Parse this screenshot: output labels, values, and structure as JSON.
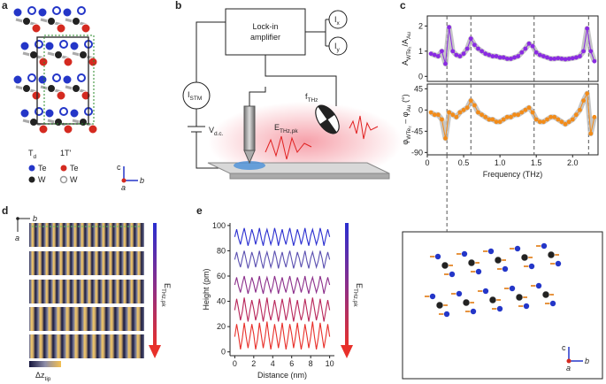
{
  "panel_labels": [
    "a",
    "b",
    "c",
    "d",
    "e"
  ],
  "panel_a": {
    "phases": [
      [
        "T",
        "d"
      ],
      [
        "1T'"
      ]
    ],
    "td_atoms": [
      "Te",
      "W"
    ],
    "t1_atoms": [
      "Te",
      "W"
    ],
    "axes": [
      "c",
      "a",
      "b"
    ]
  },
  "panel_b": {
    "lockin": [
      "Lock-in",
      "amplifier"
    ],
    "ix": [
      "I",
      "x"
    ],
    "iy": [
      "I",
      "y"
    ],
    "istm": [
      "I",
      "STM"
    ],
    "vdc": [
      "V",
      "d.c."
    ],
    "fthz": [
      "f",
      "THz"
    ],
    "ethz": [
      "E",
      "THz,pk"
    ]
  },
  "panel_c_inset": {
    "axes": [
      "c",
      "a",
      "b"
    ]
  },
  "panel_d": {
    "axes": [
      "b",
      "a"
    ],
    "arrow_label": [
      "E",
      "THz,pk"
    ],
    "colorbar_label": [
      "Δz",
      "tip"
    ]
  },
  "panel_e": {
    "arrow_label": [
      "E",
      "THz,pk"
    ]
  },
  "chart_data": [
    {
      "type": "line",
      "ylabel": [
        "A",
        "WTe₂",
        "/A",
        "Au"
      ],
      "frame": true,
      "markers": true,
      "band_color": "#b8b8b8",
      "x": [
        0.05,
        0.1,
        0.15,
        0.2,
        0.25,
        0.3,
        0.35,
        0.4,
        0.45,
        0.5,
        0.55,
        0.6,
        0.65,
        0.7,
        0.75,
        0.8,
        0.85,
        0.9,
        0.95,
        1.0,
        1.05,
        1.1,
        1.15,
        1.2,
        1.25,
        1.3,
        1.35,
        1.4,
        1.45,
        1.5,
        1.55,
        1.6,
        1.65,
        1.7,
        1.75,
        1.8,
        1.85,
        1.9,
        1.95,
        2.0,
        2.05,
        2.1,
        2.15,
        2.2,
        2.25,
        2.3
      ],
      "series": [
        {
          "color": "#8a2be2",
          "values": [
            0.9,
            0.85,
            0.8,
            1.0,
            0.5,
            1.95,
            1.0,
            0.85,
            0.8,
            0.9,
            1.1,
            1.5,
            1.25,
            1.1,
            1.0,
            0.9,
            0.85,
            0.8,
            0.8,
            0.75,
            0.75,
            0.7,
            0.7,
            0.75,
            0.8,
            0.95,
            1.1,
            1.3,
            1.2,
            0.95,
            0.85,
            0.8,
            0.75,
            0.7,
            0.7,
            0.72,
            0.7,
            0.68,
            0.7,
            0.72,
            0.75,
            0.8,
            1.0,
            1.9,
            1.0,
            0.6
          ]
        }
      ],
      "vlines": [
        0.27,
        0.6,
        1.47,
        2.22
      ],
      "xlim": [
        0,
        2.35
      ],
      "ylim": [
        -0.2,
        2.4
      ],
      "yticks": [
        0,
        1,
        2
      ]
    },
    {
      "type": "line",
      "ylabel": [
        "φ",
        "WTe₂",
        " – φ",
        "Au",
        " (°)"
      ],
      "xlabel": "Frequency (THz)",
      "frame": true,
      "markers": true,
      "band_color": "#b8b8b8",
      "x": [
        0.05,
        0.1,
        0.15,
        0.2,
        0.25,
        0.3,
        0.35,
        0.4,
        0.45,
        0.5,
        0.55,
        0.6,
        0.65,
        0.7,
        0.75,
        0.8,
        0.85,
        0.9,
        0.95,
        1.0,
        1.05,
        1.1,
        1.15,
        1.2,
        1.25,
        1.3,
        1.35,
        1.4,
        1.45,
        1.5,
        1.55,
        1.6,
        1.65,
        1.7,
        1.75,
        1.8,
        1.85,
        1.9,
        1.95,
        2.0,
        2.05,
        2.1,
        2.15,
        2.2,
        2.25,
        2.3
      ],
      "series": [
        {
          "color": "#f28c1a",
          "values": [
            -5,
            -10,
            -10,
            -20,
            -60,
            -5,
            -10,
            -15,
            -5,
            0,
            5,
            20,
            10,
            -5,
            -10,
            -15,
            -20,
            -20,
            -25,
            -25,
            -20,
            -15,
            -15,
            -10,
            -10,
            -5,
            0,
            5,
            -5,
            -20,
            -25,
            -25,
            -20,
            -15,
            -15,
            -20,
            -25,
            -30,
            -25,
            -20,
            -10,
            0,
            20,
            35,
            -50,
            -15
          ]
        }
      ],
      "vlines": [
        0.27,
        0.6,
        1.47,
        2.22
      ],
      "xlim": [
        0,
        2.35
      ],
      "ylim": [
        -95,
        55
      ],
      "yticks": [
        -90,
        -45,
        0,
        45
      ],
      "xticks": [
        0,
        0.5,
        {
          "value": 1,
          "label": "1.0"
        },
        1.5,
        {
          "value": 2,
          "label": "2.0"
        }
      ]
    },
    {
      "type": "line",
      "xlabel": "Distance (nm)",
      "ylabel": [
        "Height (pm)"
      ],
      "frame": false,
      "markers": false,
      "x": [
        0,
        0.2,
        0.4,
        0.6,
        0.8,
        1,
        1.2,
        1.4,
        1.6,
        1.8,
        2,
        2.2,
        2.4,
        2.6,
        2.8,
        3,
        3.2,
        3.4,
        3.6,
        3.8,
        4,
        4.2,
        4.4,
        4.6,
        4.8,
        5,
        5.2,
        5.4,
        5.6,
        5.8,
        6,
        6.2,
        6.4,
        6.6,
        6.8,
        7,
        7.2,
        7.4,
        7.6,
        7.8,
        8,
        8.2,
        8.4,
        8.6,
        8.8,
        9,
        9.2,
        9.4,
        9.6,
        9.8,
        10
      ],
      "series": [
        {
          "color": "#e8302a",
          "values": [
            12,
            22,
            13,
            2,
            11,
            23,
            12,
            3,
            12,
            22,
            14,
            2,
            10,
            23,
            13,
            3,
            12,
            24,
            12,
            2,
            11,
            22,
            13,
            3,
            12,
            23,
            12,
            2,
            11,
            22,
            14,
            3,
            12,
            23,
            12,
            2,
            10,
            22,
            13,
            3,
            12,
            24,
            12,
            2,
            11,
            23,
            13,
            3,
            12,
            22,
            12
          ]
        },
        {
          "color": "#b8265a",
          "values": [
            33,
            42,
            34,
            25,
            32,
            43,
            33,
            24,
            33,
            41,
            34,
            25,
            31,
            42,
            33,
            24,
            33,
            43,
            32,
            25,
            32,
            41,
            33,
            24,
            33,
            42,
            34,
            25,
            32,
            43,
            33,
            24,
            33,
            41,
            32,
            25,
            31,
            42,
            33,
            24,
            33,
            43,
            34,
            25,
            32,
            42,
            33,
            24,
            33,
            41,
            33
          ]
        },
        {
          "color": "#8b2e8a",
          "values": [
            53,
            59,
            52,
            47,
            54,
            60,
            53,
            46,
            52,
            59,
            54,
            47,
            53,
            60,
            52,
            46,
            54,
            59,
            53,
            47,
            52,
            60,
            54,
            46,
            53,
            59,
            52,
            47,
            54,
            60,
            53,
            46,
            52,
            59,
            54,
            47,
            53,
            60,
            52,
            46,
            54,
            59,
            53,
            47,
            52,
            60,
            54,
            46,
            53,
            59,
            53
          ]
        },
        {
          "color": "#5a4fb0",
          "values": [
            73,
            79,
            72,
            67,
            74,
            80,
            73,
            66,
            72,
            79,
            74,
            67,
            73,
            80,
            72,
            66,
            74,
            79,
            73,
            67,
            72,
            80,
            74,
            66,
            73,
            79,
            72,
            67,
            74,
            80,
            73,
            66,
            72,
            79,
            74,
            67,
            73,
            80,
            72,
            66,
            74,
            79,
            73,
            67,
            72,
            80,
            74,
            66,
            73,
            79,
            73
          ]
        },
        {
          "color": "#2a2ed0",
          "values": [
            91,
            97,
            90,
            85,
            92,
            98,
            91,
            84,
            90,
            97,
            92,
            85,
            91,
            98,
            90,
            84,
            92,
            97,
            91,
            85,
            90,
            98,
            92,
            84,
            91,
            97,
            90,
            85,
            92,
            98,
            91,
            84,
            90,
            97,
            92,
            85,
            91,
            98,
            90,
            84,
            92,
            97,
            91,
            85,
            90,
            98,
            92,
            84,
            91,
            97,
            91
          ]
        }
      ],
      "xlim": [
        -0.5,
        10.5
      ],
      "ylim": [
        -3,
        102
      ],
      "xticks": [
        0,
        2,
        4,
        6,
        8,
        10
      ],
      "yticks": [
        0,
        20,
        40,
        60,
        80,
        100
      ]
    }
  ]
}
